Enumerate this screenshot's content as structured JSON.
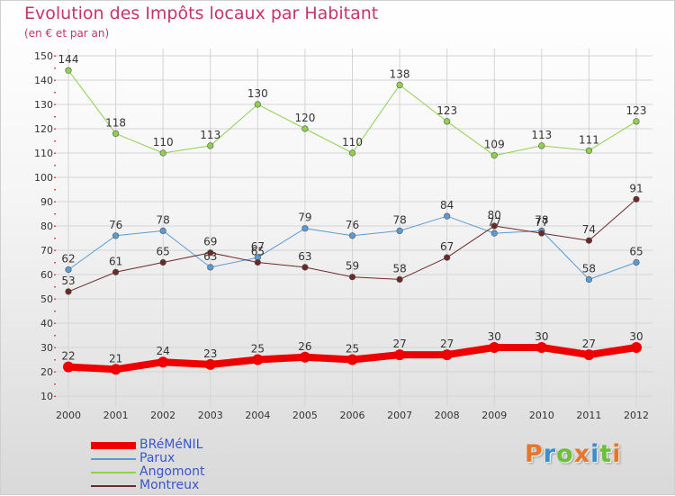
{
  "header": {
    "title": "Evolution des Impôts locaux par Habitant",
    "subtitle": "(en € et par an)"
  },
  "brand": {
    "logo_text": "Proxiti",
    "logo_colors": [
      "#e8762a",
      "#3a8fd0",
      "#6bbf3a",
      "#e8762a",
      "#3a8fd0",
      "#6bbf3a",
      "#e8762a"
    ]
  },
  "chart_data": {
    "type": "line",
    "title": "Evolution des Impôts locaux par Habitant",
    "subtitle": "(en € et par an)",
    "xlabel": "",
    "ylabel": "",
    "categories": [
      "2000",
      "2001",
      "2002",
      "2003",
      "2004",
      "2005",
      "2006",
      "2007",
      "2008",
      "2009",
      "2010",
      "2011",
      "2012"
    ],
    "ylim": [
      10,
      150
    ],
    "yticks": [
      10,
      20,
      30,
      40,
      50,
      60,
      70,
      80,
      90,
      100,
      110,
      120,
      130,
      140,
      150
    ],
    "grid": true,
    "legend_position": "bottom-left",
    "series": [
      {
        "name": "BRéMéNIL",
        "color": "#ee0000",
        "width": 8,
        "values": [
          22,
          21,
          24,
          23,
          25,
          26,
          25,
          27,
          27,
          30,
          30,
          27,
          30
        ]
      },
      {
        "name": "Parux",
        "color": "#5b9bd5",
        "width": 1,
        "values": [
          62,
          76,
          78,
          63,
          67,
          79,
          76,
          78,
          84,
          77,
          78,
          58,
          65
        ]
      },
      {
        "name": "Angomont",
        "color": "#8fd14f",
        "width": 1,
        "values": [
          144,
          118,
          110,
          113,
          130,
          120,
          110,
          138,
          123,
          109,
          113,
          111,
          123
        ]
      },
      {
        "name": "Montreux",
        "color": "#6b2a2a",
        "width": 1,
        "values": [
          53,
          61,
          65,
          69,
          65,
          63,
          59,
          58,
          67,
          80,
          77,
          74,
          91
        ]
      }
    ]
  }
}
